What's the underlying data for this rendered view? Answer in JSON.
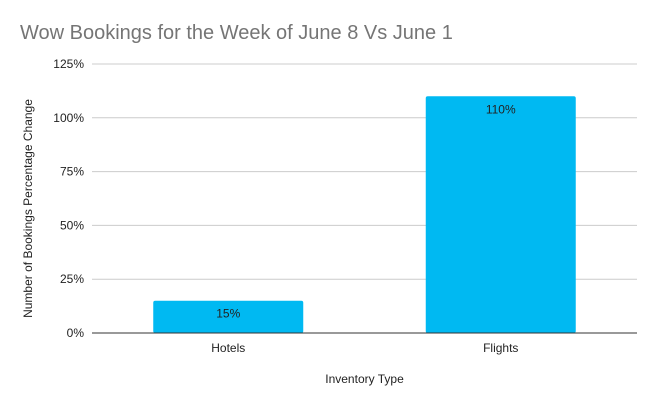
{
  "chart_data": {
    "type": "bar",
    "title": "Wow Bookings for the Week of June 8 Vs June 1",
    "xlabel": "Inventory Type",
    "ylabel": "Number of Bookings Percentage Change",
    "categories": [
      "Hotels",
      "Flights"
    ],
    "values": [
      15,
      110
    ],
    "data_labels": [
      "15%",
      "110%"
    ],
    "y_ticks": [
      0,
      25,
      50,
      75,
      100,
      125
    ],
    "y_tick_labels": [
      "0%",
      "25%",
      "50%",
      "75%",
      "100%",
      "125%"
    ],
    "ylim": [
      0,
      125
    ],
    "grid": true,
    "legend": "none",
    "bar_color": "#00b9f2"
  }
}
